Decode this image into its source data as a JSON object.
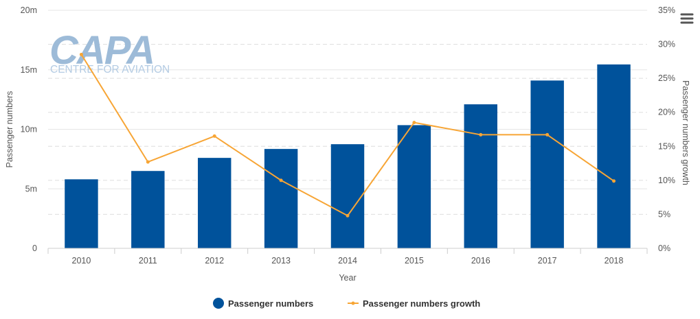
{
  "watermark": {
    "logo_text": "CAPA",
    "sub_text": "CENTRE FOR AVIATION"
  },
  "menu": {
    "icon": "hamburger-menu-icon"
  },
  "legend_placement": "bottom-center",
  "chart_data": {
    "type": "bar",
    "categories": [
      "2010",
      "2011",
      "2012",
      "2013",
      "2014",
      "2015",
      "2016",
      "2017",
      "2018"
    ],
    "series": [
      {
        "name": "Passenger numbers",
        "type": "bar",
        "axis": "left",
        "color": "#00529b",
        "values": [
          5.8,
          6.5,
          7.6,
          8.35,
          8.75,
          10.35,
          12.1,
          14.1,
          15.45
        ]
      },
      {
        "name": "Passenger numbers growth",
        "type": "line",
        "axis": "right",
        "color": "#f7a535",
        "values": [
          28.5,
          12.7,
          16.5,
          10.0,
          4.8,
          18.5,
          16.7,
          16.7,
          9.9
        ]
      }
    ],
    "xlabel": "Year",
    "ylabel_left": "Passenger numbers",
    "ylabel_right": "Passenger numbers growth",
    "y_left": {
      "min": 0,
      "max": 20,
      "ticks": [
        0,
        5,
        10,
        15,
        20
      ],
      "tick_labels": [
        "0",
        "5m",
        "10m",
        "15m",
        "20m"
      ]
    },
    "y_right": {
      "min": 0,
      "max": 35,
      "ticks": [
        0,
        5,
        10,
        15,
        20,
        25,
        30,
        35
      ],
      "tick_labels": [
        "0%",
        "5%",
        "10%",
        "15%",
        "20%",
        "25%",
        "30%",
        "35%"
      ]
    },
    "grid": true
  }
}
